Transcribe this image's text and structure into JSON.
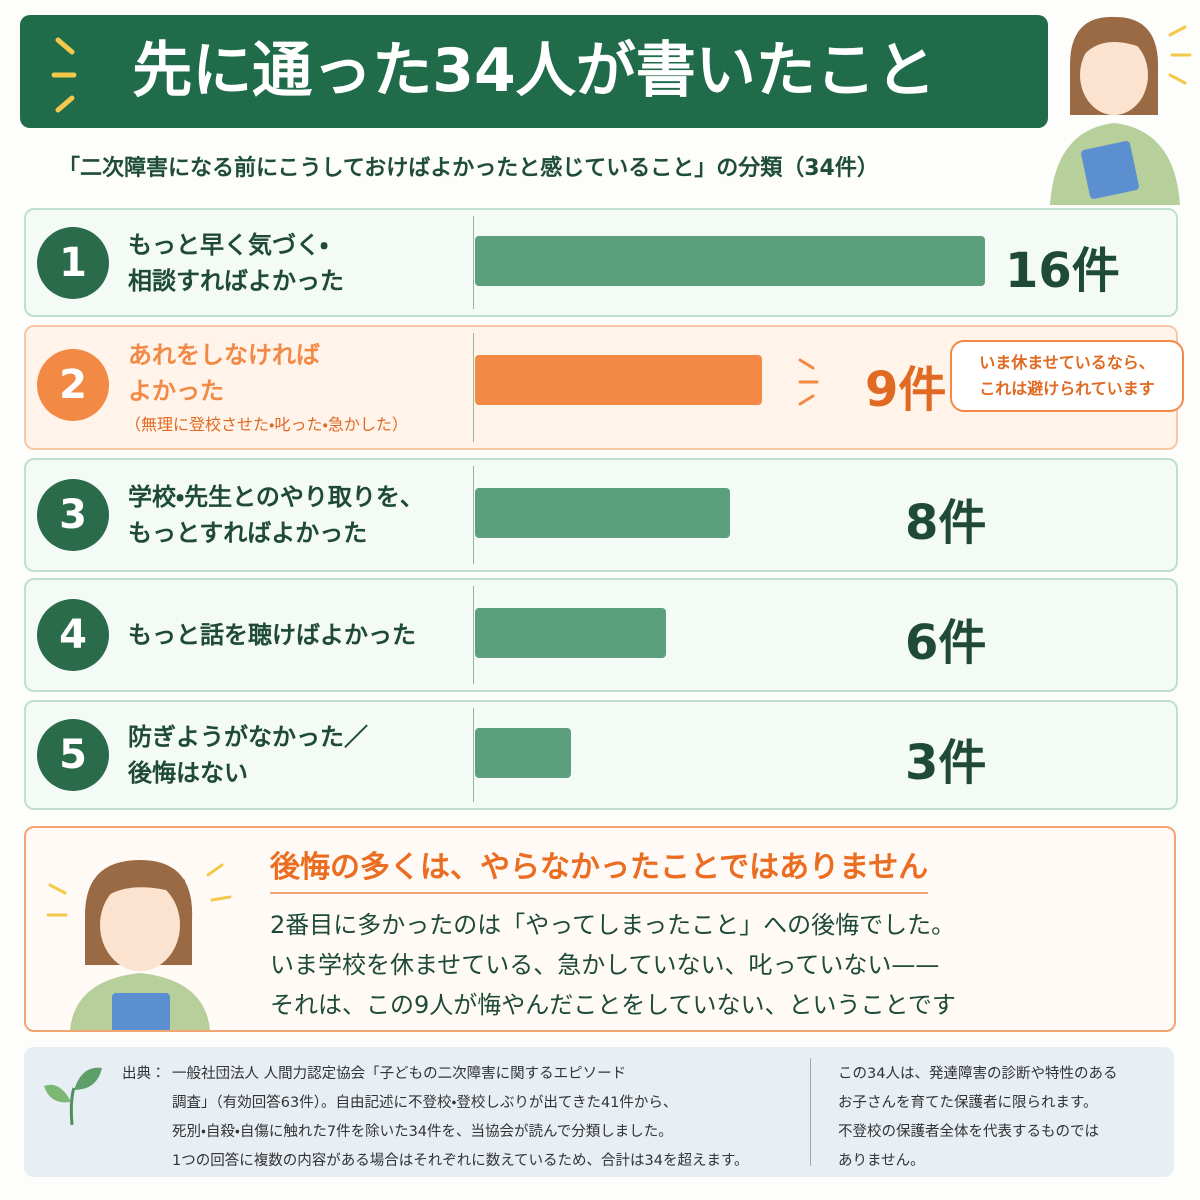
{
  "header": {
    "title": "先に通った34人が書いたこと"
  },
  "chart_data": {
    "type": "bar",
    "title": "「二次障害になる前にこうしておけばよかったと感じていること」の分類（34件）",
    "ranks": [
      1,
      2,
      3,
      4,
      5
    ],
    "categories": [
      "もっと早く気づく・\n相談すればよかった",
      "あれをしなければ\nよかった",
      "学校・先生とのやり取りを、\nもっとすればよかった",
      "もっと話を聴けばよかった",
      "防ぎようがなかった／\n後悔はない"
    ],
    "values": [
      16,
      9,
      8,
      6,
      3
    ],
    "value_labels": [
      "16件",
      "9件",
      "8件",
      "6件",
      "3件"
    ],
    "color": "#5c9f7c",
    "highlight": {
      "index": 1,
      "color": "#f28a45",
      "note": "（無理に登校させた・叱った・急かした）",
      "callout": "いま休ませているなら、\nこれは避けられています"
    }
  },
  "message": {
    "heading": "後悔の多くは、やらなかったことではありません",
    "body": [
      "2番目に多かったのは「やってしまったこと」への後悔でした。",
      "いま学校を休ませている、急かしていない、叱っていない——",
      "それは、この9人が悔やんだことをしていない、ということです"
    ]
  },
  "footer": {
    "source_label": "出典：",
    "source": [
      "一般社団法人 人間力認定協会「子どもの二次障害に関するエピソード",
      "調査」（有効回答63件）。自由記述に不登校・登校しぶりが出てきた41件から、",
      "死別・自殺・自傷に触れた7件を除いた34件を、当協会が読んで分類しました。",
      "1つの回答に複数の内容がある場合はそれぞれに数えているため、合計は34を超えます。"
    ],
    "note": [
      "この34人は、発達障害の診断や特性のある",
      "お子さんを育てた保護者に限られます。",
      "不登校の保護者全体を代表するものでは",
      "ありません。"
    ]
  }
}
